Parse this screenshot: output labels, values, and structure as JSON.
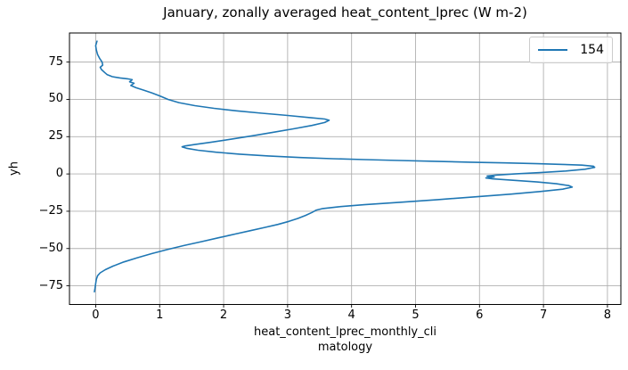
{
  "chart_data": {
    "type": "line",
    "title": "January, zonally averaged heat_content_lprec (W m-2)",
    "xlabel_lines": [
      "heat_content_lprec_monthly_cli",
      "matology"
    ],
    "ylabel": "yh",
    "legend": {
      "position": "upper right",
      "entries": [
        {
          "label": "154",
          "color": "#1f77b4"
        }
      ]
    },
    "grid": true,
    "grid_color": "#b0b0b0",
    "line_color": "#1f77b4",
    "spine_color": "#000000",
    "xlim": [
      -0.41,
      8.21
    ],
    "ylim": [
      -87.5,
      94.5
    ],
    "xticks": [
      0,
      1,
      2,
      3,
      4,
      5,
      6,
      7,
      8
    ],
    "xticklabels": [
      "0",
      "1",
      "2",
      "3",
      "4",
      "5",
      "6",
      "7",
      "8"
    ],
    "yticks": [
      -75,
      -50,
      -25,
      0,
      25,
      50,
      75
    ],
    "yticklabels": [
      "−75",
      "−50",
      "−25",
      "0",
      "25",
      "50",
      "75"
    ],
    "series": [
      {
        "name": "154",
        "points": [
          [
            0.02,
            89.0
          ],
          [
            0.0,
            86.0
          ],
          [
            0.01,
            83.0
          ],
          [
            0.03,
            80.0
          ],
          [
            0.06,
            77.5
          ],
          [
            0.1,
            75.0
          ],
          [
            0.11,
            73.0
          ],
          [
            0.07,
            71.5
          ],
          [
            0.09,
            70.0
          ],
          [
            0.14,
            68.0
          ],
          [
            0.18,
            66.5
          ],
          [
            0.26,
            65.2
          ],
          [
            0.38,
            64.4
          ],
          [
            0.5,
            63.8
          ],
          [
            0.57,
            63.2
          ],
          [
            0.53,
            61.8
          ],
          [
            0.6,
            60.8
          ],
          [
            0.55,
            59.3
          ],
          [
            0.63,
            57.8
          ],
          [
            0.75,
            56.2
          ],
          [
            0.88,
            54.3
          ],
          [
            1.02,
            52.0
          ],
          [
            1.13,
            50.0
          ],
          [
            1.3,
            47.8
          ],
          [
            1.55,
            45.8
          ],
          [
            1.85,
            44.0
          ],
          [
            2.2,
            42.3
          ],
          [
            2.6,
            40.7
          ],
          [
            3.0,
            39.2
          ],
          [
            3.35,
            37.8
          ],
          [
            3.58,
            36.8
          ],
          [
            3.65,
            36.0
          ],
          [
            3.58,
            34.5
          ],
          [
            3.38,
            32.5
          ],
          [
            3.1,
            30.3
          ],
          [
            2.78,
            28.0
          ],
          [
            2.45,
            25.6
          ],
          [
            2.12,
            23.3
          ],
          [
            1.8,
            21.2
          ],
          [
            1.55,
            19.7
          ],
          [
            1.4,
            18.8
          ],
          [
            1.35,
            18.2
          ],
          [
            1.42,
            17.2
          ],
          [
            1.6,
            15.9
          ],
          [
            1.88,
            14.6
          ],
          [
            2.25,
            13.3
          ],
          [
            2.7,
            12.1
          ],
          [
            3.2,
            11.0
          ],
          [
            3.7,
            10.2
          ],
          [
            4.2,
            9.6
          ],
          [
            4.75,
            9.0
          ],
          [
            5.3,
            8.5
          ],
          [
            5.85,
            7.9
          ],
          [
            6.4,
            7.4
          ],
          [
            6.9,
            6.9
          ],
          [
            7.3,
            6.4
          ],
          [
            7.6,
            5.9
          ],
          [
            7.78,
            5.2
          ],
          [
            7.8,
            4.4
          ],
          [
            7.65,
            3.2
          ],
          [
            7.35,
            2.0
          ],
          [
            6.95,
            0.9
          ],
          [
            6.55,
            0.0
          ],
          [
            6.25,
            -0.8
          ],
          [
            6.12,
            -1.4
          ],
          [
            6.23,
            -2.0
          ],
          [
            6.1,
            -2.7
          ],
          [
            6.2,
            -3.3
          ],
          [
            6.5,
            -4.2
          ],
          [
            6.9,
            -5.4
          ],
          [
            7.2,
            -6.6
          ],
          [
            7.4,
            -7.8
          ],
          [
            7.45,
            -8.8
          ],
          [
            7.3,
            -10.2
          ],
          [
            6.95,
            -11.8
          ],
          [
            6.5,
            -13.5
          ],
          [
            5.95,
            -15.3
          ],
          [
            5.35,
            -17.2
          ],
          [
            4.75,
            -19.0
          ],
          [
            4.2,
            -20.6
          ],
          [
            3.8,
            -22.0
          ],
          [
            3.55,
            -23.2
          ],
          [
            3.45,
            -24.2
          ],
          [
            3.38,
            -25.8
          ],
          [
            3.28,
            -27.8
          ],
          [
            3.16,
            -29.8
          ],
          [
            3.02,
            -31.8
          ],
          [
            2.85,
            -33.8
          ],
          [
            2.65,
            -35.8
          ],
          [
            2.42,
            -38.0
          ],
          [
            2.18,
            -40.3
          ],
          [
            1.92,
            -42.8
          ],
          [
            1.65,
            -45.4
          ],
          [
            1.38,
            -48.0
          ],
          [
            1.12,
            -50.7
          ],
          [
            0.88,
            -53.4
          ],
          [
            0.65,
            -56.2
          ],
          [
            0.44,
            -59.0
          ],
          [
            0.27,
            -61.8
          ],
          [
            0.15,
            -64.2
          ],
          [
            0.07,
            -66.3
          ],
          [
            0.03,
            -68.2
          ],
          [
            0.01,
            -70.5
          ],
          [
            0.0,
            -73.5
          ],
          [
            -0.01,
            -76.5
          ],
          [
            -0.02,
            -79.0
          ]
        ]
      }
    ]
  }
}
